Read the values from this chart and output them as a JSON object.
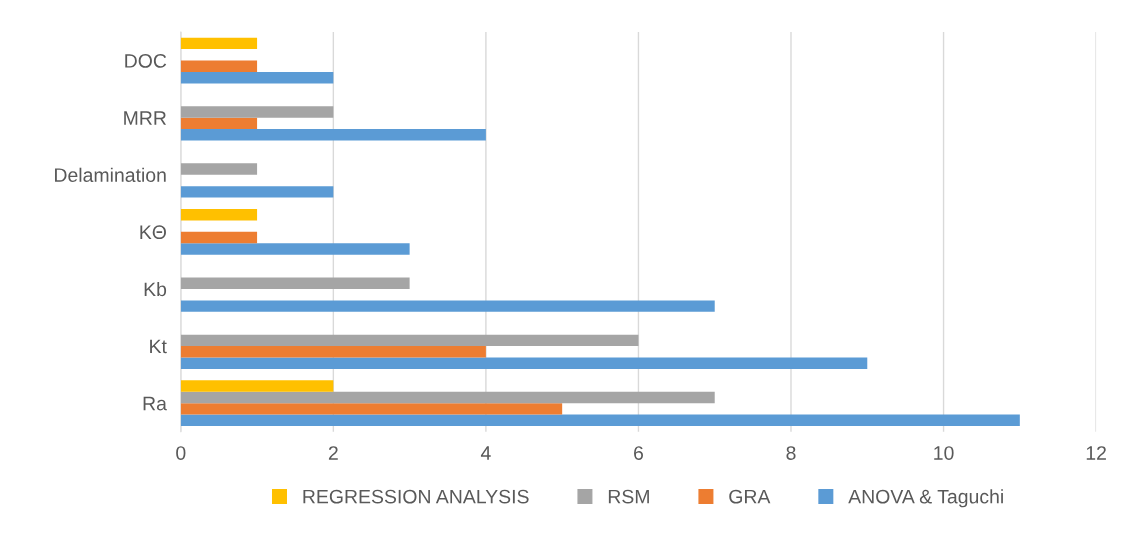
{
  "chart_data": {
    "type": "bar",
    "orientation": "horizontal",
    "categories": [
      "DOC",
      "MRR",
      "Delamination",
      "KΘ",
      "Kb",
      "Kt",
      "Ra"
    ],
    "series": [
      {
        "name": "ANOVA & Taguchi",
        "color": "#5b9bd5",
        "values": [
          2,
          4,
          2,
          3,
          7,
          9,
          11
        ]
      },
      {
        "name": "GRA",
        "color": "#ed7d31",
        "values": [
          1,
          1,
          null,
          1,
          null,
          4,
          5
        ]
      },
      {
        "name": "RSM",
        "color": "#a5a5a5",
        "values": [
          null,
          2,
          1,
          null,
          3,
          6,
          7
        ]
      },
      {
        "name": "REGRESSION ANALYSIS",
        "color": "#ffc000",
        "values": [
          1,
          null,
          null,
          1,
          null,
          null,
          2
        ]
      }
    ],
    "xlim": [
      0,
      12
    ],
    "xticks": [
      0,
      2,
      4,
      6,
      8,
      10,
      12
    ],
    "grid": "x",
    "legend": "bottom"
  }
}
